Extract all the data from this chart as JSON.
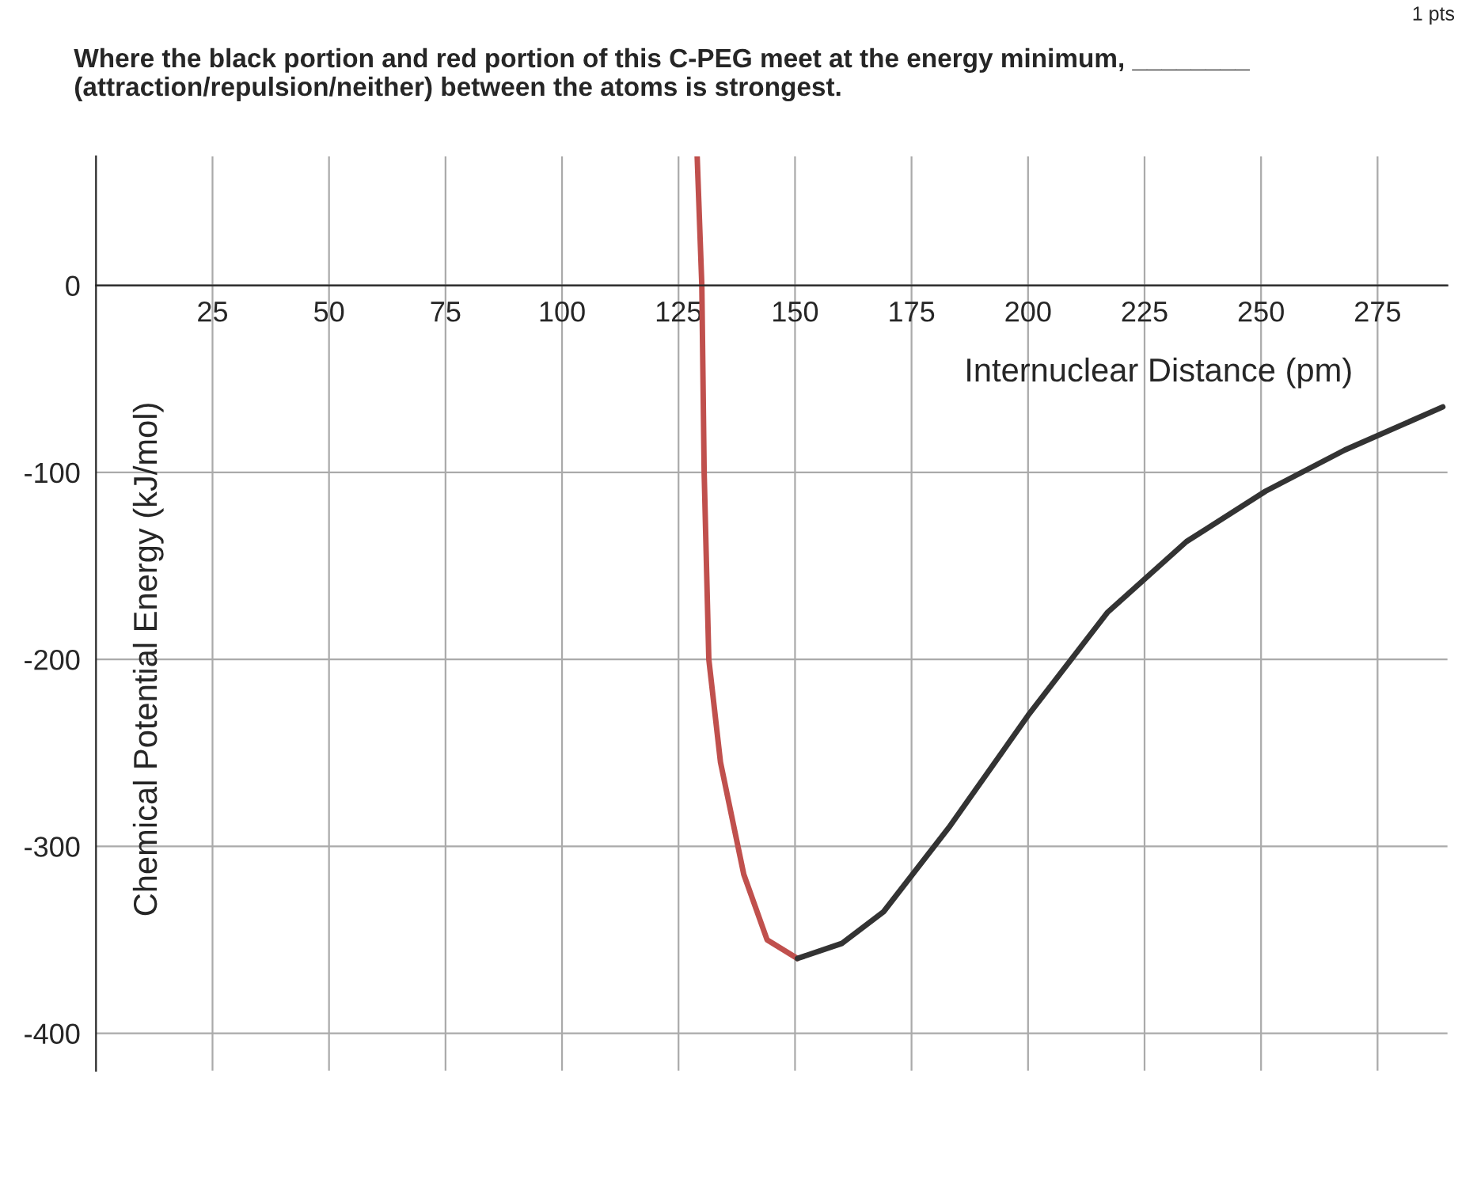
{
  "chart_data": {
    "type": "line",
    "title": "Where the black portion and red portion of this C-PEG meet at the energy minimum, ________\n(attraction/repulsion/neither) between the atoms is strongest.",
    "xlabel": "Internuclear Distance (pm)",
    "ylabel": "Chemical Potential Energy (kJ/mol)",
    "annotations": [
      "1 pts"
    ],
    "series": [
      {
        "color": "#c0504d",
        "x": [
          129,
          130,
          130.5,
          131.5,
          134,
          139,
          144,
          150.5
        ],
        "values": [
          69,
          0,
          -100,
          -200,
          -255,
          -315,
          -350,
          -360
        ]
      },
      {
        "color": "#333333",
        "x": [
          150.5,
          160,
          169,
          183,
          200,
          217,
          234,
          251,
          268,
          289
        ],
        "values": [
          -360,
          -352,
          -335,
          -290,
          -230,
          -175,
          -137,
          -110,
          -88,
          -65
        ]
      }
    ],
    "xlim": [
      0,
      290
    ],
    "ylim": [
      -420,
      69
    ],
    "xticks": [
      25,
      50,
      75,
      100,
      125,
      150,
      175,
      200,
      225,
      250,
      275
    ],
    "yticks": [
      0,
      -100,
      -200,
      -300,
      -400
    ],
    "grid": true,
    "legend": false,
    "marker": "none",
    "line_style": "solid"
  }
}
